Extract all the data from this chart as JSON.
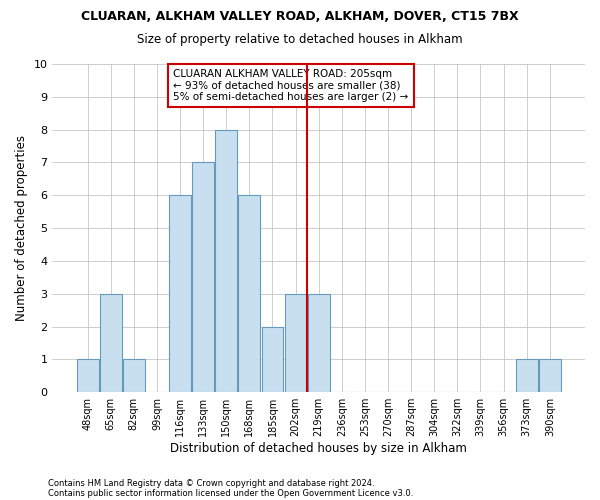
{
  "title_line1": "CLUARAN, ALKHAM VALLEY ROAD, ALKHAM, DOVER, CT15 7BX",
  "title_line2": "Size of property relative to detached houses in Alkham",
  "xlabel": "Distribution of detached houses by size in Alkham",
  "ylabel": "Number of detached properties",
  "categories": [
    "48sqm",
    "65sqm",
    "82sqm",
    "99sqm",
    "116sqm",
    "133sqm",
    "150sqm",
    "168sqm",
    "185sqm",
    "202sqm",
    "219sqm",
    "236sqm",
    "253sqm",
    "270sqm",
    "287sqm",
    "304sqm",
    "322sqm",
    "339sqm",
    "356sqm",
    "373sqm",
    "390sqm"
  ],
  "values": [
    1,
    3,
    1,
    0,
    6,
    7,
    8,
    6,
    2,
    3,
    3,
    0,
    0,
    0,
    0,
    0,
    0,
    0,
    0,
    1,
    1
  ],
  "bar_color": "#c8dff0",
  "bar_edge_color": "#6699bb",
  "grid_color": "#bbbbbb",
  "annotation_box_text_line1": "CLUARAN ALKHAM VALLEY ROAD: 205sqm",
  "annotation_box_text_line2": "← 93% of detached houses are smaller (38)",
  "annotation_box_text_line3": "5% of semi-detached houses are larger (2) →",
  "annotation_box_color": "#ffffff",
  "annotation_box_edge_color": "#cc0000",
  "vline_color": "#cc0000",
  "ylim": [
    0,
    10
  ],
  "yticks": [
    0,
    1,
    2,
    3,
    4,
    5,
    6,
    7,
    8,
    9,
    10
  ],
  "footnote_line1": "Contains HM Land Registry data © Crown copyright and database right 2024.",
  "footnote_line2": "Contains public sector information licensed under the Open Government Licence v3.0.",
  "background_color": "#ffffff",
  "plot_bg_color": "#ffffff"
}
